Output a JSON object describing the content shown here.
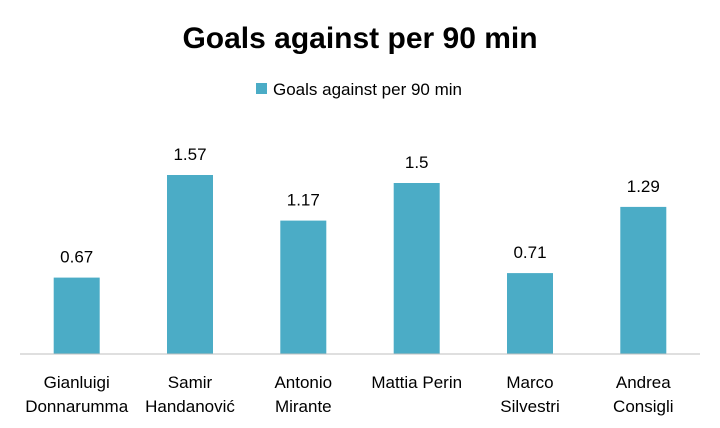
{
  "chart_data": {
    "type": "bar",
    "title": "Goals against per 90 min",
    "categories": [
      [
        "Gianluigi",
        "Donnarumma"
      ],
      [
        "Samir",
        "Handanović"
      ],
      [
        "Antonio",
        "Mirante"
      ],
      [
        "Mattia Perin"
      ],
      [
        "Marco",
        "Silvestri"
      ],
      [
        "Andrea",
        "Consigli"
      ]
    ],
    "series": [
      {
        "name": "Goals against per 90 min",
        "values": [
          0.67,
          1.57,
          1.17,
          1.5,
          0.71,
          1.29
        ],
        "color": "#4bacc6"
      }
    ],
    "data_labels": [
      "0.67",
      "1.57",
      "1.17",
      "1.5",
      "0.71",
      "1.29"
    ],
    "ylim": [
      0,
      1.8
    ],
    "grid": false,
    "legend": "top"
  }
}
